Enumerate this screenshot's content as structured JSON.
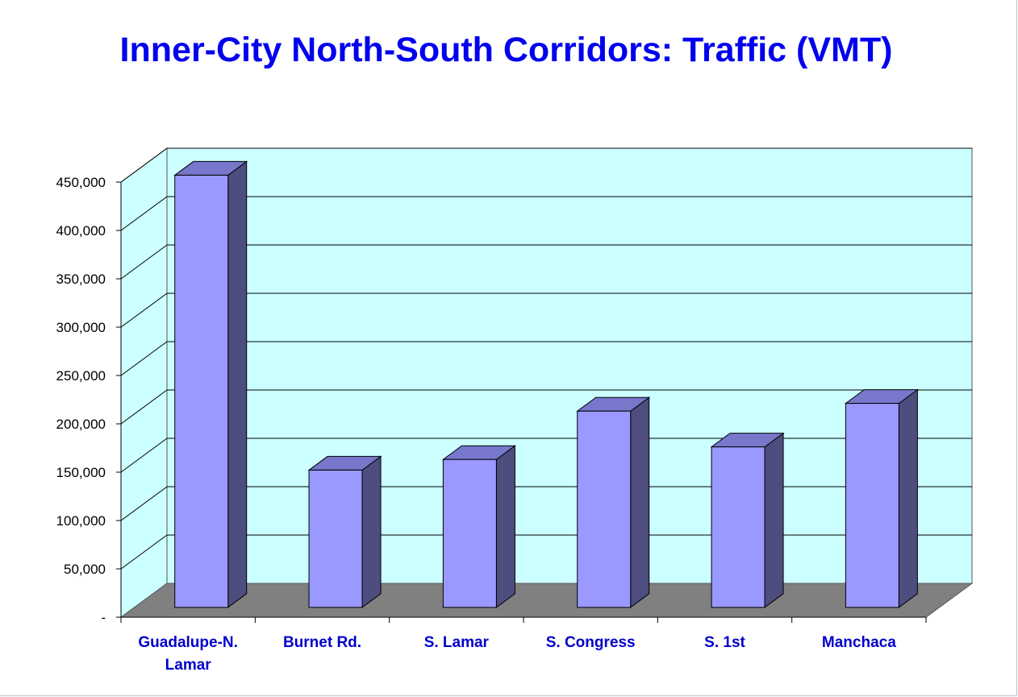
{
  "title": "Inner-City North-South Corridors: Traffic (VMT)",
  "chart_data": {
    "type": "bar",
    "style": "3d-column",
    "categories": [
      "Guadalupe-N. Lamar",
      "Burnet Rd.",
      "S. Lamar",
      "S. Congress",
      "S. 1st",
      "Manchaca"
    ],
    "category_lines": [
      [
        "Guadalupe-N.",
        "Lamar"
      ],
      [
        "Burnet Rd."
      ],
      [
        "S. Lamar"
      ],
      [
        "S. Congress"
      ],
      [
        "S. 1st"
      ],
      [
        "Manchaca"
      ]
    ],
    "values": [
      447000,
      142000,
      153000,
      203000,
      166000,
      211000
    ],
    "yticks": [
      0,
      50000,
      100000,
      150000,
      200000,
      250000,
      300000,
      350000,
      400000,
      450000
    ],
    "ytick_labels": [
      "-",
      "50,000",
      "100,000",
      "150,000",
      "200,000",
      "250,000",
      "300,000",
      "350,000",
      "400,000",
      "450,000"
    ],
    "ylim": [
      0,
      450000
    ],
    "xlabel": "",
    "ylabel": "",
    "grid": true,
    "colors": {
      "title": "#0000ee",
      "category_labels": "#0000cc",
      "wall": "#ccffff",
      "floor": "#808080",
      "bar_front": "#9999ff",
      "bar_side": "#4d4d80",
      "bar_top": "#7777cc",
      "grid": "#000000"
    }
  }
}
